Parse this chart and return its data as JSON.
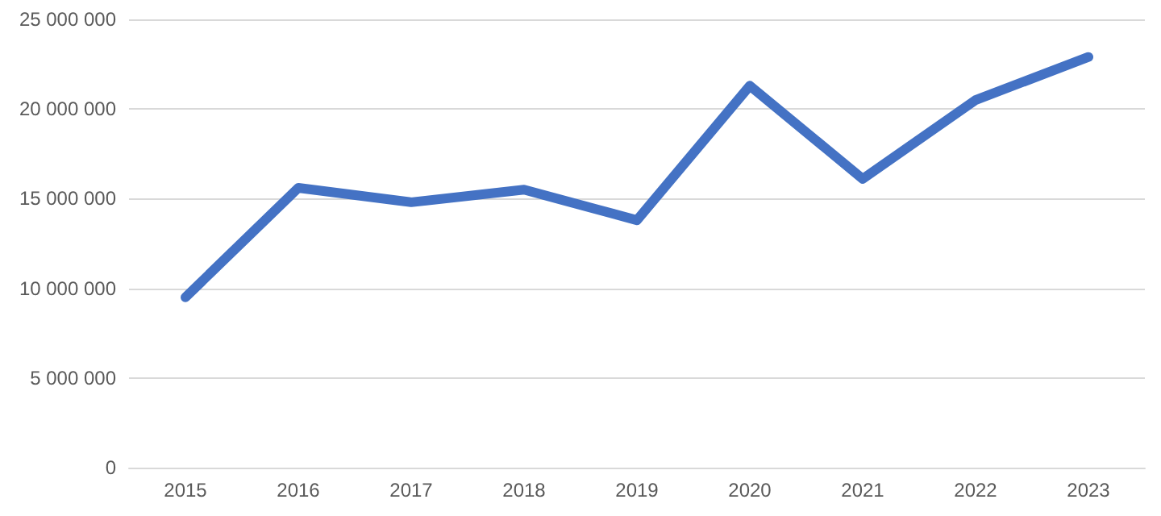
{
  "chart_data": {
    "type": "line",
    "categories": [
      "2015",
      "2016",
      "2017",
      "2018",
      "2019",
      "2020",
      "2021",
      "2022",
      "2023"
    ],
    "series": [
      {
        "color": "#4472c4",
        "values": [
          9500000,
          15600000,
          14800000,
          15500000,
          13800000,
          21300000,
          16100000,
          20500000,
          22900000
        ]
      }
    ],
    "ylim": [
      0,
      25000000
    ],
    "yticks": [
      {
        "value": 0,
        "label": "0"
      },
      {
        "value": 5000000,
        "label": "5 000 000"
      },
      {
        "value": 10000000,
        "label": "10 000 000"
      },
      {
        "value": 15000000,
        "label": "15 000 000"
      },
      {
        "value": 20000000,
        "label": "20 000 000"
      },
      {
        "value": 25000000,
        "label": "25 000 000"
      }
    ],
    "grid": "y",
    "marker": "none",
    "line_style": "solid"
  }
}
